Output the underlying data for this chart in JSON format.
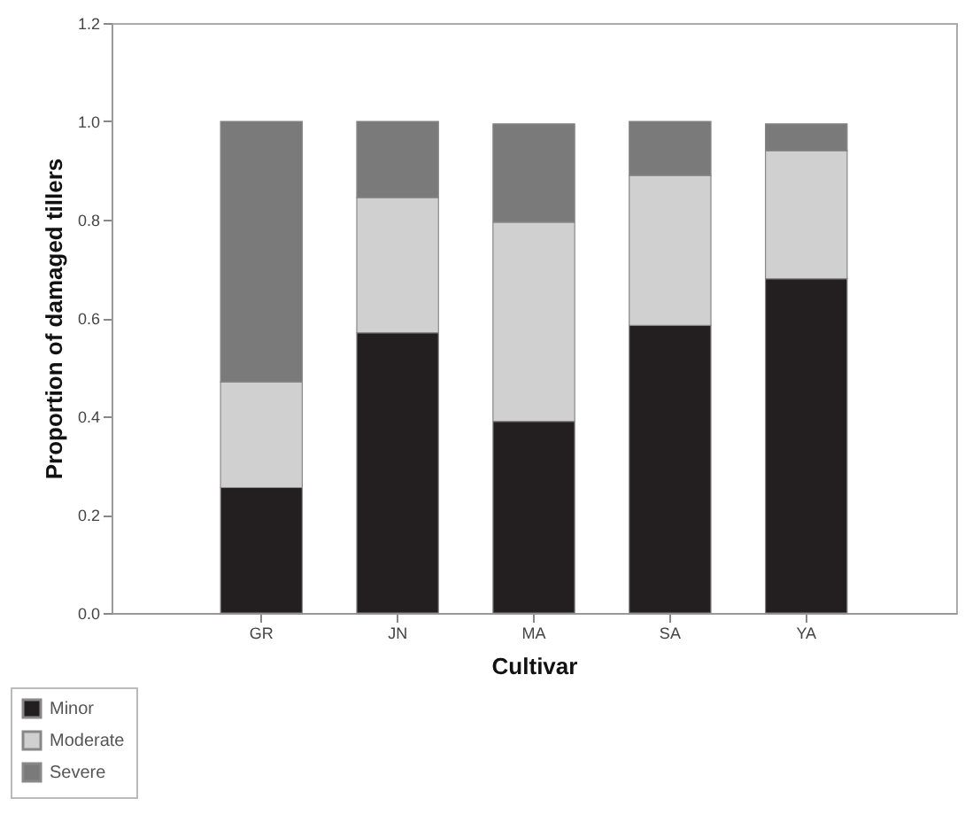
{
  "chart_data": {
    "type": "bar",
    "stacked": true,
    "xlabel": "Cultivar",
    "ylabel": "Proportion of damaged tillers",
    "categories": [
      "GR",
      "JN",
      "MA",
      "SA",
      "YA"
    ],
    "series": [
      {
        "name": "Minor",
        "color": "#231f20",
        "values": [
          0.255,
          0.57,
          0.39,
          0.585,
          0.68
        ]
      },
      {
        "name": "Moderate",
        "color": "#d0d0d0",
        "values": [
          0.215,
          0.275,
          0.405,
          0.305,
          0.26
        ]
      },
      {
        "name": "Severe",
        "color": "#7a7a7a",
        "values": [
          0.53,
          0.155,
          0.2,
          0.11,
          0.055
        ]
      }
    ],
    "ylim": [
      0,
      1.2
    ],
    "yticks": [
      {
        "value": 0,
        "label": "0.0"
      },
      {
        "value": 0.2,
        "label": "0.2"
      },
      {
        "value": 0.4,
        "label": "0.4"
      },
      {
        "value": 0.6,
        "label": "0.6"
      },
      {
        "value": 0.8,
        "label": "0.8"
      },
      {
        "value": 1,
        "label": "1.0"
      },
      {
        "value": 1.2,
        "label": "1.2"
      }
    ],
    "legend": "bottom left",
    "grid": false
  }
}
